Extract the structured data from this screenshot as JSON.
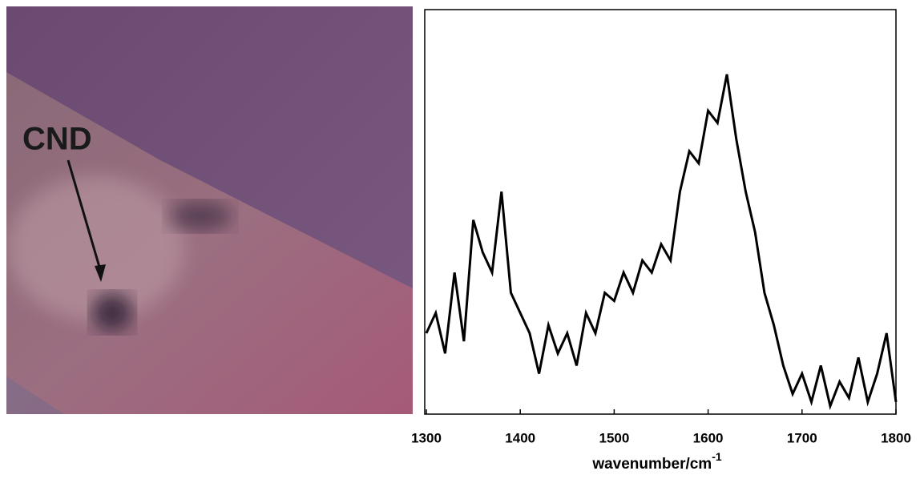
{
  "image_annotation": "CND",
  "chart_data": {
    "type": "line",
    "xlabel": {
      "text": "wavenumber/cm",
      "superscript": "-1"
    },
    "x": [
      1300,
      1310,
      1320,
      1330,
      1340,
      1350,
      1360,
      1370,
      1380,
      1390,
      1400,
      1410,
      1420,
      1430,
      1440,
      1450,
      1460,
      1470,
      1480,
      1490,
      1500,
      1510,
      1520,
      1530,
      1540,
      1550,
      1560,
      1570,
      1580,
      1590,
      1600,
      1610,
      1620,
      1630,
      1640,
      1650,
      1660,
      1670,
      1680,
      1690,
      1700,
      1710,
      1720,
      1730,
      1740,
      1750,
      1760,
      1770,
      1780,
      1790,
      1800
    ],
    "values": [
      20,
      25,
      15,
      35,
      18,
      48,
      40,
      35,
      55,
      30,
      25,
      20,
      10,
      22,
      15,
      20,
      12,
      25,
      20,
      30,
      28,
      35,
      30,
      38,
      35,
      42,
      38,
      55,
      65,
      62,
      75,
      72,
      84,
      68,
      55,
      45,
      30,
      22,
      12,
      5,
      10,
      3,
      12,
      2,
      8,
      4,
      14,
      3,
      10,
      20,
      3
    ],
    "color": "#000000",
    "xlim": [
      1300,
      1800
    ],
    "ylim": [
      0,
      100
    ],
    "xticks": [
      1300,
      1400,
      1500,
      1600,
      1700,
      1800
    ]
  }
}
